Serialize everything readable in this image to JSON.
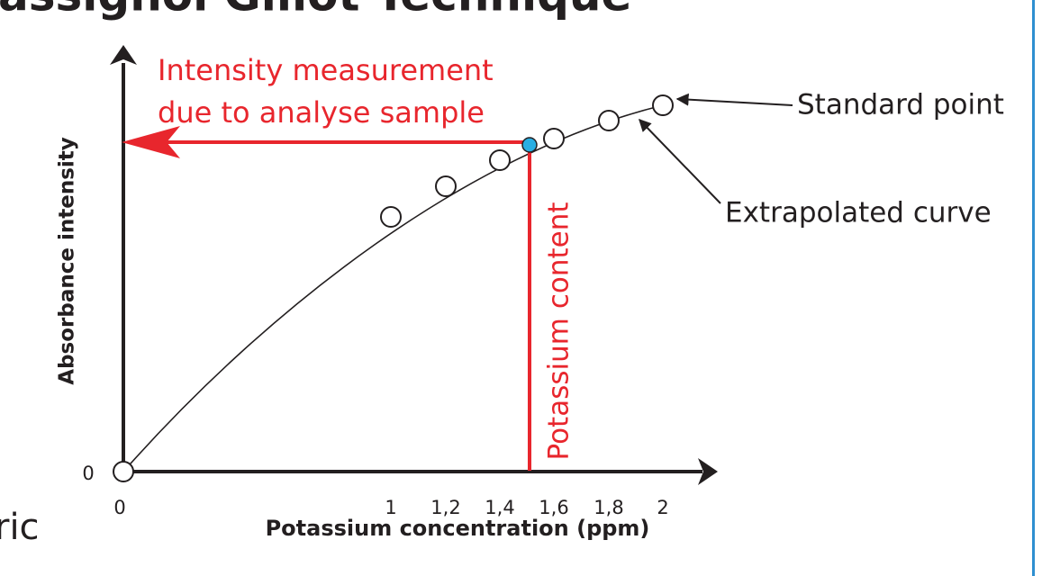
{
  "header": {
    "title": "assignol Gillot Technique",
    "side_text": "ric"
  },
  "diagram": {
    "y_axis_label": "Absorbance intensity",
    "x_axis_label": "Potassium concentration (ppm)",
    "y_origin_label": "0",
    "x_ticks": [
      "0",
      "1",
      "1,2",
      "1,4",
      "1,6",
      "1,8",
      "2"
    ],
    "annotations": {
      "intensity": [
        "Intensity measurement",
        "due to analyse sample"
      ],
      "content": "Potassium content",
      "standard_point": "Standard point",
      "curve": "Extrapolated curve"
    }
  }
}
